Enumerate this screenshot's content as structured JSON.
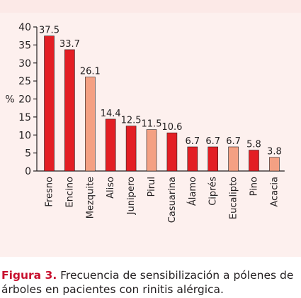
{
  "chart_data": {
    "type": "bar",
    "title": "",
    "ylabel": "%",
    "xlabel": "",
    "ylim": [
      0,
      40
    ],
    "yticks": [
      0,
      5,
      10,
      15,
      20,
      25,
      30,
      35,
      40
    ],
    "categories": [
      "Fresno",
      "Encino",
      "Mezquite",
      "Aliso",
      "Junipero",
      "Pirul",
      "Casuarina",
      "Álamo",
      "Ciprés",
      "Eucalipto",
      "Pino",
      "Acacia"
    ],
    "values": [
      37.5,
      33.7,
      26.1,
      14.4,
      12.5,
      11.5,
      10.6,
      6.7,
      6.7,
      6.7,
      5.8,
      3.8
    ],
    "value_labels": [
      "37.5",
      "33.7",
      "26.1",
      "14.4",
      "12.5",
      "11.5",
      "10.6",
      "6.7",
      "6.7",
      "6.7",
      "5.8",
      "3.8"
    ],
    "bar_colors": [
      "#e31e24",
      "#e31e24",
      "#f4a083",
      "#e31e24",
      "#e31e24",
      "#f4a083",
      "#e31e24",
      "#e31e24",
      "#e31e24",
      "#f4a083",
      "#e31e24",
      "#f4a083"
    ],
    "grid": false,
    "legend": "none"
  },
  "caption": {
    "label": "Figura 3.",
    "text": " Frecuencia de sensibilización a pólenes de árboles en pacientes con rinitis alérgica."
  },
  "colors": {
    "bar_dark": "#e31e24",
    "bar_light": "#f4a083",
    "caption_label": "#c8102e",
    "panel_background": "#fdf0ee"
  }
}
